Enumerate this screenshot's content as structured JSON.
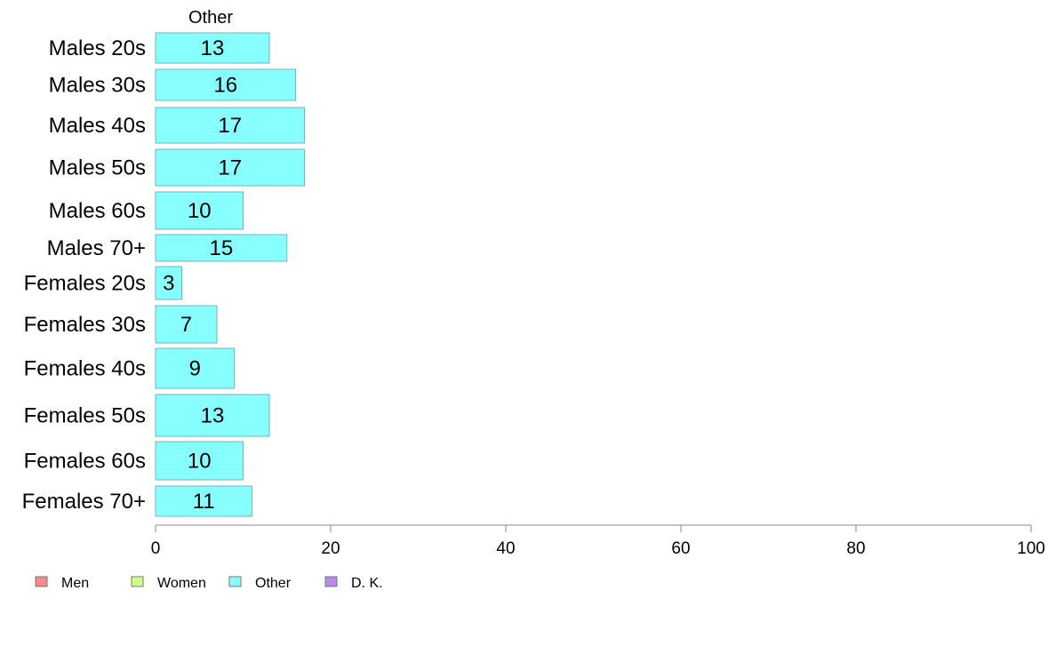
{
  "chart_data": {
    "type": "bar",
    "orientation": "horizontal",
    "group_label": "Other",
    "categories": [
      "Males 20s",
      "Males 30s",
      "Males 40s",
      "Males 50s",
      "Males 60s",
      "Males 70+",
      "Females 20s",
      "Females 30s",
      "Females 40s",
      "Females 50s",
      "Females 60s",
      "Females 70+"
    ],
    "series": [
      {
        "name": "Other",
        "values": [
          13,
          16,
          17,
          17,
          10,
          15,
          3,
          7,
          9,
          13,
          10,
          11
        ]
      }
    ],
    "value_labels": [
      "13",
      "16",
      "17",
      "17",
      "10",
      "15",
      "3",
      "7",
      "9",
      "13",
      "10",
      "11"
    ],
    "xlim": [
      0,
      100
    ],
    "xticks": [
      "0",
      "20",
      "40",
      "60",
      "80",
      "100"
    ],
    "xlabel": "",
    "ylabel": "",
    "legend": {
      "placement": "bottom-left",
      "items": [
        {
          "label": "Men",
          "color": "#f28b8b"
        },
        {
          "label": "Women",
          "color": "#ccff88"
        },
        {
          "label": "Other",
          "color": "#88ffff"
        },
        {
          "label": "D. K.",
          "color": "#bb88ee"
        }
      ]
    },
    "bar_color": "#88ffff",
    "bar_stroke": "#6fb5b5",
    "axis_color": "#888888"
  }
}
